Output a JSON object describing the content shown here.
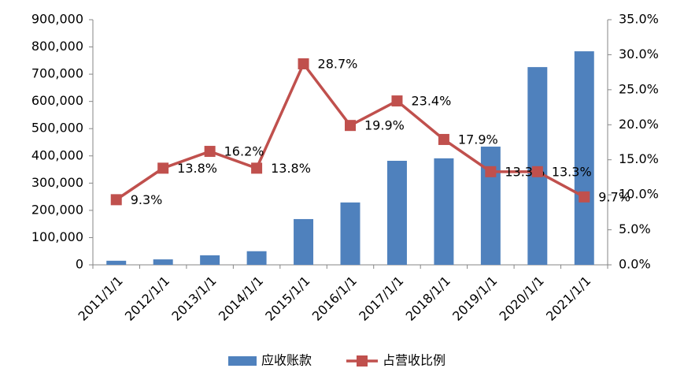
{
  "chart_data": {
    "type": "bar-line",
    "categories": [
      "2011/1/1",
      "2012/1/1",
      "2013/1/1",
      "2014/1/1",
      "2015/1/1",
      "2016/1/1",
      "2017/1/1",
      "2018/1/1",
      "2019/1/1",
      "2020/1/1",
      "2021/1/1"
    ],
    "series": [
      {
        "name": "应收账款",
        "type": "bar",
        "color": "#4f81bd",
        "values": [
          15000,
          20000,
          35000,
          50000,
          168000,
          229000,
          382000,
          391000,
          434000,
          726000,
          784000
        ]
      },
      {
        "name": "占营收比例",
        "type": "line",
        "axis": "y2",
        "color": "#c0504d",
        "values": [
          9.3,
          13.8,
          16.2,
          13.8,
          28.7,
          19.9,
          23.4,
          17.9,
          13.3,
          13.3,
          9.7
        ],
        "value_labels": [
          "9.3%",
          "13.8%",
          "16.2%",
          "13.8%",
          "28.7%",
          "19.9%",
          "23.4%",
          "17.9%",
          "13.3%",
          "13.3%",
          "9.7%"
        ]
      }
    ],
    "ylim": [
      0,
      900000
    ],
    "yticks": [
      0,
      {
        "value": 100000,
        "label": "100,000"
      },
      {
        "value": 200000,
        "label": "200,000"
      },
      {
        "value": 300000,
        "label": "300,000"
      },
      {
        "value": 400000,
        "label": "400,000"
      },
      {
        "value": 500000,
        "label": "500,000"
      },
      {
        "value": 600000,
        "label": "600,000"
      },
      {
        "value": 700000,
        "label": "700,000"
      },
      {
        "value": 800000,
        "label": "800,000"
      },
      {
        "value": 900000,
        "label": "900,000"
      }
    ],
    "y2lim": [
      0,
      35
    ],
    "y2ticks": [
      {
        "value": 0,
        "label": "0.0%"
      },
      {
        "value": 5,
        "label": "5.0%"
      },
      {
        "value": 10,
        "label": "10.0%"
      },
      {
        "value": 15,
        "label": "15.0%"
      },
      {
        "value": 20,
        "label": "20.0%"
      },
      {
        "value": 25,
        "label": "25.0%"
      },
      {
        "value": 30,
        "label": "30.0%"
      },
      {
        "value": 35,
        "label": "35.0%"
      }
    ],
    "legend": "bottom"
  }
}
